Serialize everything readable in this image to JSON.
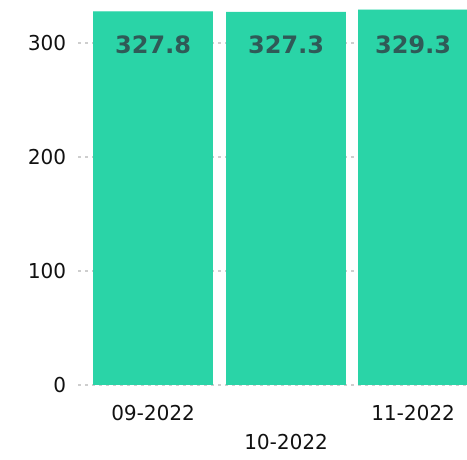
{
  "chart_data": {
    "type": "bar",
    "categories": [
      "09-2022",
      "10-2022",
      "11-2022"
    ],
    "series": [
      {
        "values": [
          327.8,
          327.3,
          329.3
        ],
        "color": "#2ad4a7"
      }
    ],
    "data_labels": [
      "327.8",
      "327.3",
      "329.3"
    ],
    "y_ticks": [
      0,
      100,
      200,
      300
    ],
    "ylim": [
      0,
      330
    ],
    "grid": true,
    "grid_style": "dotted",
    "legend": "none",
    "label_color": "#2f5a57",
    "grid_color": "#b0b0b0"
  }
}
